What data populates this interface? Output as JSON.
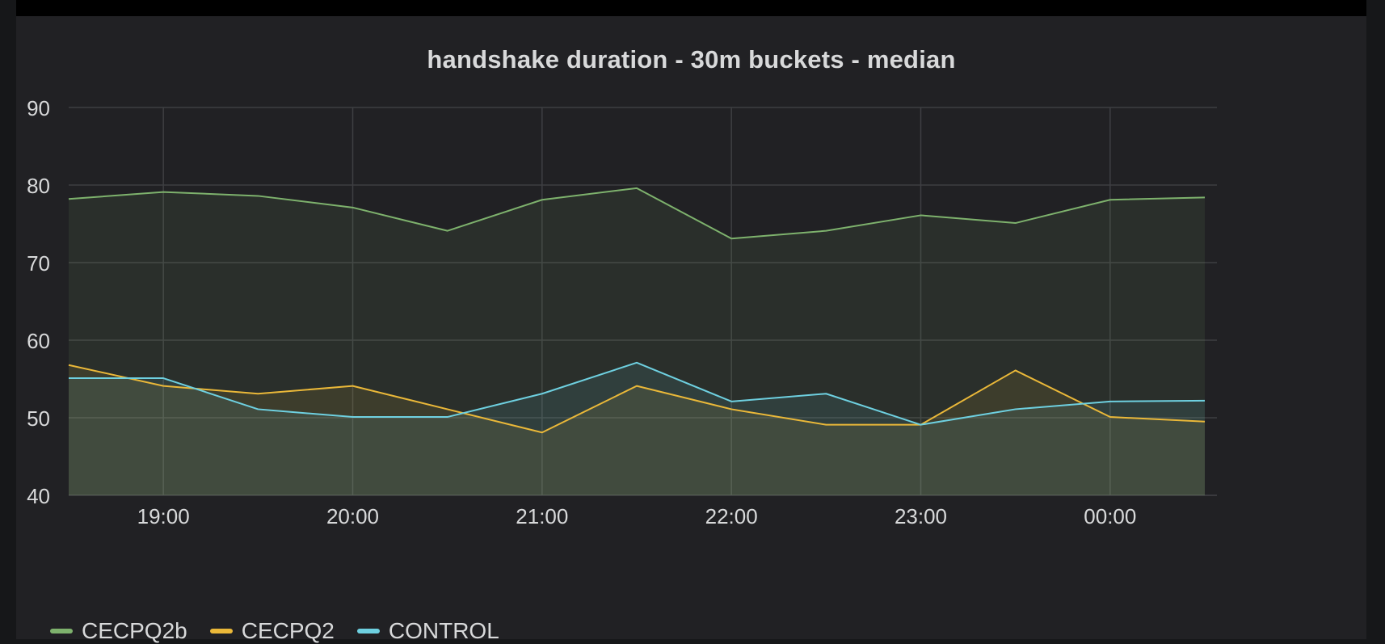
{
  "panel": {
    "title": "handshake duration - 30m buckets - median"
  },
  "chart_data": {
    "type": "area",
    "title": "handshake duration - 30m buckets - median",
    "xlabel": "",
    "ylabel": "",
    "ylim": [
      40,
      90
    ],
    "yticks": [
      "40",
      "50",
      "60",
      "70",
      "80",
      "90"
    ],
    "xtick_labels": [
      "19:00",
      "20:00",
      "21:00",
      "22:00",
      "23:00",
      "00:00"
    ],
    "grid": true,
    "legend_position": "bottom-left",
    "x": [
      "18:30",
      "19:00",
      "19:30",
      "20:00",
      "20:30",
      "21:00",
      "21:30",
      "22:00",
      "22:30",
      "23:00",
      "23:30",
      "00:00",
      "00:30"
    ],
    "series": [
      {
        "name": "CECPQ2b",
        "color": "#7eb26d",
        "values": [
          78.2,
          79.1,
          78.6,
          77.1,
          74.1,
          78.1,
          79.6,
          73.1,
          74.1,
          76.1,
          75.1,
          78.1,
          78.4
        ]
      },
      {
        "name": "CECPQ2",
        "color": "#eab839",
        "values": [
          56.8,
          54.1,
          53.1,
          54.1,
          51.1,
          48.1,
          54.1,
          51.1,
          49.1,
          49.1,
          56.1,
          50.1,
          49.5
        ]
      },
      {
        "name": "CONTROL",
        "color": "#6ed0e0",
        "values": [
          55.1,
          55.1,
          51.1,
          50.1,
          50.1,
          53.1,
          57.1,
          52.1,
          53.1,
          49.1,
          51.1,
          52.1,
          52.2
        ]
      }
    ]
  }
}
